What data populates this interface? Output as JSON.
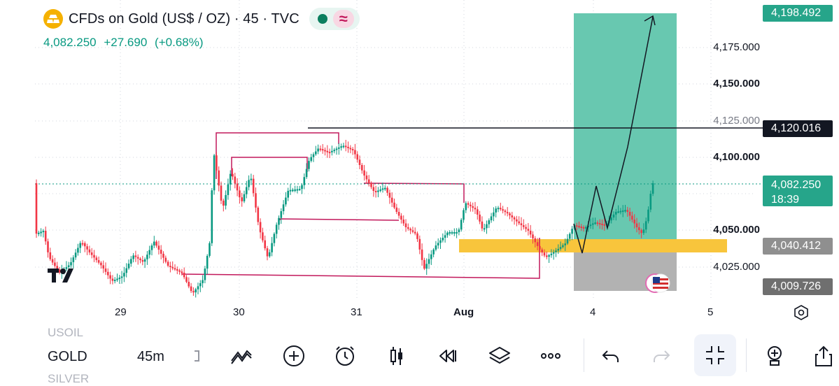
{
  "header": {
    "title": "CFDs on Gold (US$ / OZ) · 45 · TVC",
    "last_price": "4,082.250",
    "change": "+27.690",
    "change_pct": "(+0.68%)",
    "status_icon": "market-open-dot-icon",
    "indicator_icon": "wave-icon"
  },
  "price_axis": {
    "labels": [
      "4,175.000",
      "4,150.000",
      "4,125.000",
      "4,100.000",
      "4,050.000",
      "4,025.000"
    ],
    "bold_labels": [
      "4,150.000",
      "4,100.000",
      "4,050.000"
    ]
  },
  "price_tags": {
    "target": "4,198.492",
    "level": "4,120.016",
    "current": "4,082.250",
    "countdown": "18:39",
    "entry": "4,040.412",
    "stop": "4,009.726"
  },
  "time_axis": {
    "labels": [
      "29",
      "30",
      "31",
      "Aug",
      "4",
      "5"
    ],
    "bold": "Aug"
  },
  "toolbar": {
    "symbols": [
      "USOIL",
      "GOLD",
      "SILVER"
    ],
    "active_symbol": "GOLD",
    "interval": "45m",
    "icons": [
      "chart-type-icon",
      "draw-icon",
      "add-icon",
      "alert-icon",
      "candles-icon",
      "replay-icon",
      "layers-icon",
      "more-icon",
      "undo-icon",
      "redo-icon",
      "fullscreen-exit-icon",
      "indicators-icon",
      "share-icon"
    ]
  },
  "colors": {
    "up": "#089981",
    "down": "#f23645",
    "target_zone": "#68c8b0",
    "stop_zone": "#b2b2b2",
    "support_zone": "#f8c53c",
    "range_lines": "#c2185b"
  }
}
